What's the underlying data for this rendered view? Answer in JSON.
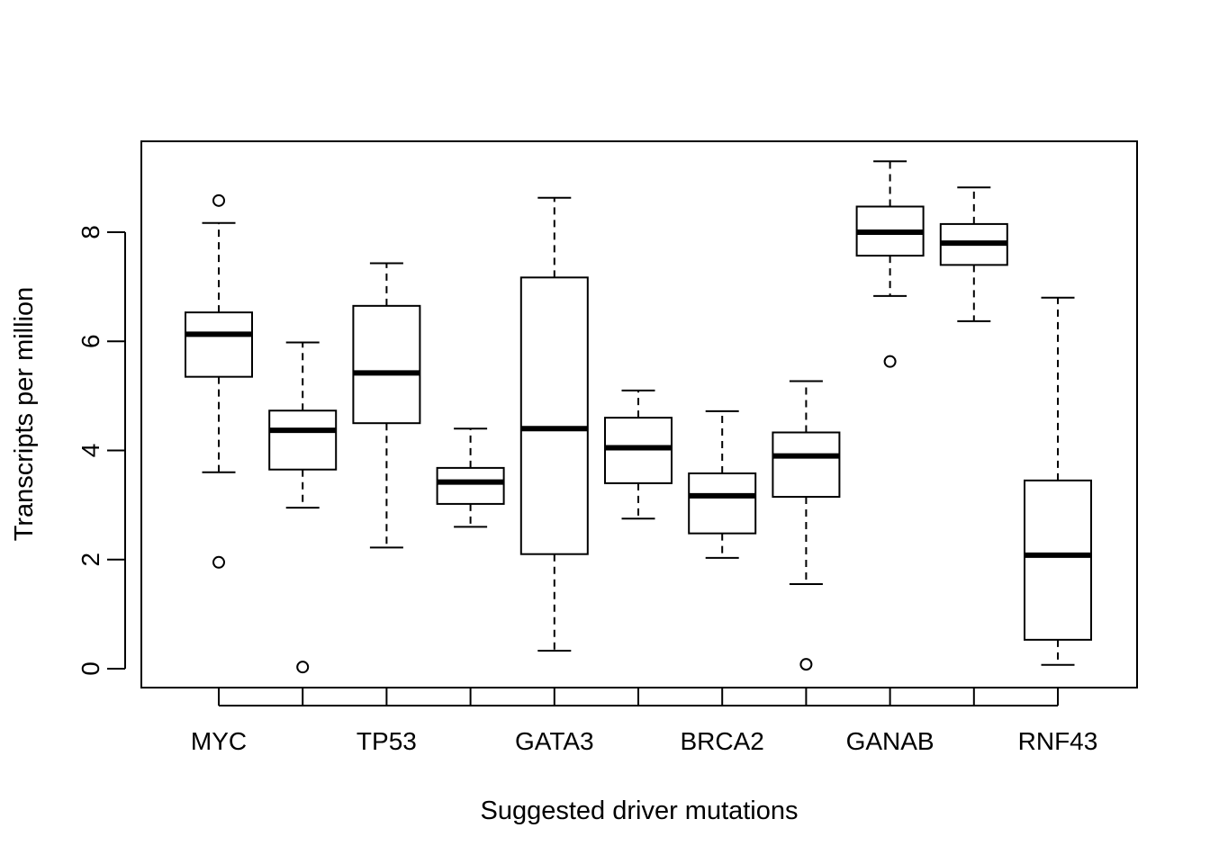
{
  "chart_data": {
    "type": "boxplot",
    "title": "",
    "xlabel": "Suggested driver mutations",
    "ylabel": "Transcripts per million",
    "ylim": [
      -0.3,
      9.7
    ],
    "yticks": [
      0,
      2,
      4,
      6,
      8
    ],
    "categories": [
      "MYC",
      "",
      "TP53",
      "",
      "GATA3",
      "",
      "BRCA2",
      "",
      "GANAB",
      "",
      "RNF43"
    ],
    "boxes": [
      {
        "q1": 5.35,
        "median": 6.13,
        "q3": 6.53,
        "whisker_low": 3.6,
        "whisker_high": 8.17,
        "outliers": [
          8.58,
          1.95
        ]
      },
      {
        "q1": 3.65,
        "median": 4.37,
        "q3": 4.73,
        "whisker_low": 2.95,
        "whisker_high": 5.98,
        "outliers": [
          0.03
        ]
      },
      {
        "q1": 4.5,
        "median": 5.42,
        "q3": 6.65,
        "whisker_low": 2.22,
        "whisker_high": 7.43,
        "outliers": []
      },
      {
        "q1": 3.02,
        "median": 3.42,
        "q3": 3.68,
        "whisker_low": 2.6,
        "whisker_high": 4.4,
        "outliers": []
      },
      {
        "q1": 2.1,
        "median": 4.4,
        "q3": 7.17,
        "whisker_low": 0.33,
        "whisker_high": 8.63,
        "outliers": []
      },
      {
        "q1": 3.4,
        "median": 4.05,
        "q3": 4.6,
        "whisker_low": 2.75,
        "whisker_high": 5.1,
        "outliers": []
      },
      {
        "q1": 2.48,
        "median": 3.17,
        "q3": 3.58,
        "whisker_low": 2.03,
        "whisker_high": 4.72,
        "outliers": []
      },
      {
        "q1": 3.15,
        "median": 3.9,
        "q3": 4.33,
        "whisker_low": 1.55,
        "whisker_high": 5.27,
        "outliers": [
          0.08
        ]
      },
      {
        "q1": 7.57,
        "median": 8.0,
        "q3": 8.47,
        "whisker_low": 6.83,
        "whisker_high": 9.3,
        "outliers": [
          5.63
        ]
      },
      {
        "q1": 7.4,
        "median": 7.8,
        "q3": 8.15,
        "whisker_low": 6.37,
        "whisker_high": 8.82,
        "outliers": []
      },
      {
        "q1": 0.53,
        "median": 2.08,
        "q3": 3.45,
        "whisker_low": 0.07,
        "whisker_high": 6.8,
        "outliers": []
      }
    ],
    "grid": false,
    "legend": "none"
  }
}
